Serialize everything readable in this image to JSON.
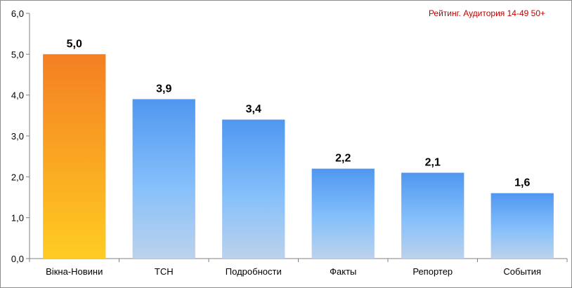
{
  "chart_data": {
    "type": "bar",
    "title": "",
    "annotation": "Рейтинг. Аудитория 14-49 50+",
    "xlabel": "",
    "ylabel": "",
    "ylim": [
      0,
      6
    ],
    "yticks": [
      "0,0",
      "1,0",
      "2,0",
      "3,0",
      "4,0",
      "5,0",
      "6,0"
    ],
    "categories": [
      "Вікна-Новини",
      "ТСН",
      "Подробности",
      "Факты",
      "Репортер",
      "События"
    ],
    "values": [
      5.0,
      3.9,
      3.4,
      2.2,
      2.1,
      1.6
    ],
    "value_labels": [
      "5,0",
      "3,9",
      "3,4",
      "2,2",
      "2,1",
      "1,6"
    ],
    "highlight_index": 0,
    "grid": false,
    "legend": "none",
    "colors": {
      "highlight_top": "#f47f23",
      "highlight_bottom": "#ffcc22",
      "bar_top": "#4f97f0",
      "bar_middle": "#86c0fb",
      "bar_bottom": "#bcd2ec",
      "axis": "#808080",
      "annotation": "#c00000"
    }
  }
}
